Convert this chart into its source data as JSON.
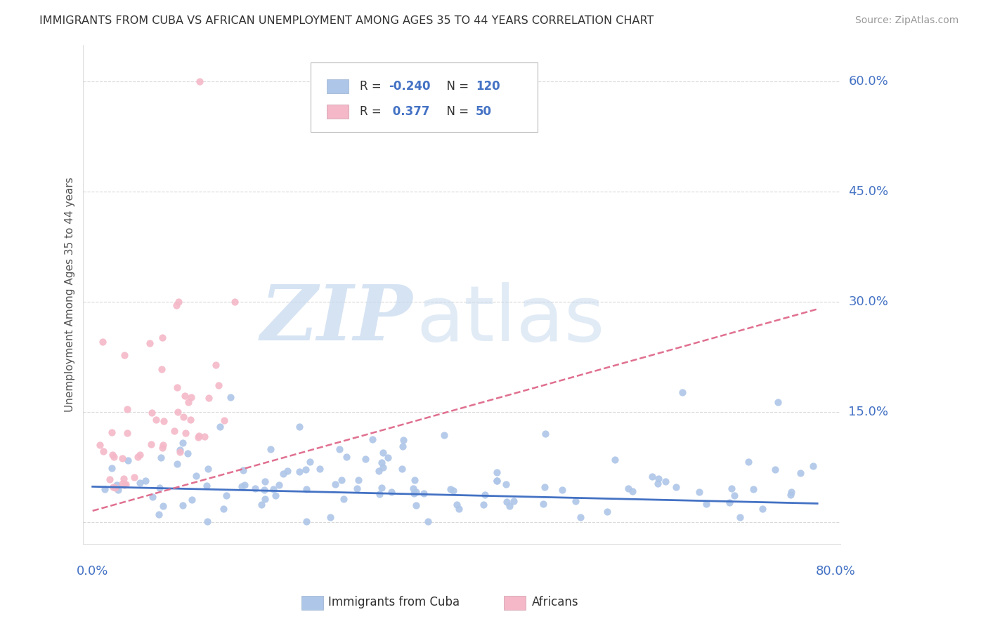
{
  "title": "IMMIGRANTS FROM CUBA VS AFRICAN UNEMPLOYMENT AMONG AGES 35 TO 44 YEARS CORRELATION CHART",
  "source": "Source: ZipAtlas.com",
  "ylabel": "Unemployment Among Ages 35 to 44 years",
  "blue_R": "-0.240",
  "blue_N": "120",
  "pink_R": "0.377",
  "pink_N": "50",
  "blue_color": "#aec6e8",
  "pink_color": "#f4b8c8",
  "blue_line_color": "#4472c4",
  "pink_line_color": "#e07090",
  "grid_color": "#d0d0d0",
  "axis_label_color": "#4472c4",
  "title_color": "#333333",
  "source_color": "#999999",
  "xmin": 0.0,
  "xmax": 0.8,
  "ymin": -0.03,
  "ymax": 0.65,
  "ytick_vals": [
    0.0,
    0.15,
    0.3,
    0.45,
    0.6
  ],
  "ytick_labels": [
    "0.0%",
    "15.0%",
    "30.0%",
    "45.0%",
    "60.0%"
  ],
  "xtick_vals": [
    0.0,
    0.8
  ],
  "xtick_labels": [
    "0.0%",
    "80.0%"
  ],
  "blue_line_x": [
    0.0,
    0.78
  ],
  "blue_line_y": [
    0.048,
    0.025
  ],
  "pink_line_x": [
    0.0,
    0.78
  ],
  "pink_line_y": [
    0.015,
    0.29
  ],
  "watermark_zip": "ZIP",
  "watermark_atlas": "atlas",
  "legend_label1": "Immigrants from Cuba",
  "legend_label2": "Africans"
}
